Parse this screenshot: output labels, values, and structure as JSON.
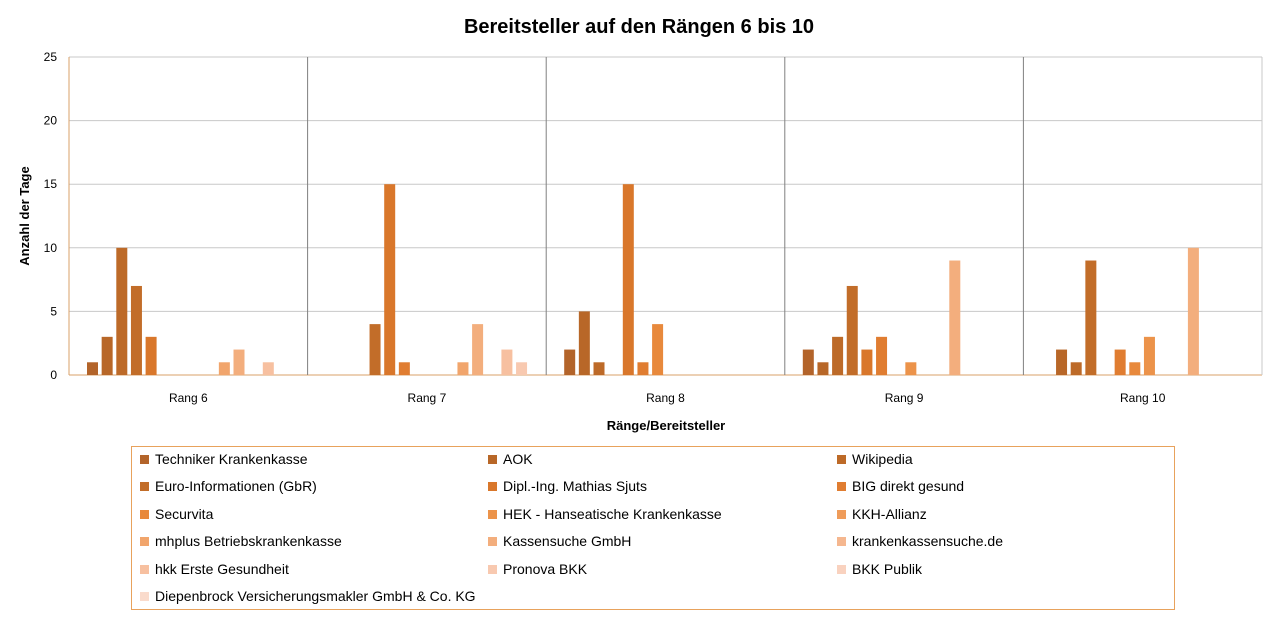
{
  "chart_data": {
    "type": "bar",
    "title": "Bereitsteller auf den Rängen 6 bis 10",
    "xlabel": "Ränge/Bereitsteller",
    "ylabel": "Anzahl der Tage",
    "ylim": [
      0,
      25
    ],
    "yticks": [
      "0",
      "5",
      "10",
      "15",
      "20",
      "25"
    ],
    "grid": true,
    "legend_position": "bottom",
    "categories": [
      "Rang 6",
      "Rang 7",
      "Rang 8",
      "Rang 9",
      "Rang 10"
    ],
    "series": [
      {
        "name": "Techniker Krankenkasse",
        "color": "#b3642a",
        "values": [
          1,
          0,
          2,
          2,
          0
        ]
      },
      {
        "name": "AOK",
        "color": "#b86728",
        "values": [
          3,
          0,
          5,
          1,
          2
        ]
      },
      {
        "name": "Wikipedia",
        "color": "#bd6a28",
        "values": [
          10,
          0,
          1,
          3,
          1
        ]
      },
      {
        "name": "Euro-Informationen (GbR)",
        "color": "#c26d29",
        "values": [
          7,
          4,
          0,
          7,
          9
        ]
      },
      {
        "name": "Dipl.-Ing. Mathias Sjuts",
        "color": "#d9772b",
        "values": [
          3,
          15,
          15,
          2,
          0
        ]
      },
      {
        "name": "BIG direkt gesund",
        "color": "#e07d31",
        "values": [
          0,
          1,
          1,
          3,
          2
        ]
      },
      {
        "name": "Securvita",
        "color": "#e8893c",
        "values": [
          0,
          0,
          4,
          0,
          1
        ]
      },
      {
        "name": "HEK - Hanseatische Krankenkasse",
        "color": "#ec934a",
        "values": [
          0,
          0,
          0,
          1,
          3
        ]
      },
      {
        "name": "KKH-Allianz",
        "color": "#ef9c5a",
        "values": [
          0,
          0,
          0,
          0,
          0
        ]
      },
      {
        "name": "mhplus Betriebskrankenkasse",
        "color": "#f1a56c",
        "values": [
          1,
          1,
          0,
          0,
          0
        ]
      },
      {
        "name": "Kassensuche GmbH",
        "color": "#f3ae7d",
        "values": [
          2,
          4,
          0,
          9,
          10
        ]
      },
      {
        "name": "krankenkassensuche.de",
        "color": "#f5b78f",
        "values": [
          0,
          0,
          0,
          0,
          0
        ]
      },
      {
        "name": "hkk Erste Gesundheit",
        "color": "#f7c0a0",
        "values": [
          1,
          2,
          0,
          0,
          0
        ]
      },
      {
        "name": "Pronova BKK",
        "color": "#f8c9b0",
        "values": [
          0,
          1,
          0,
          0,
          0
        ]
      },
      {
        "name": "BKK Publik",
        "color": "#f9d2bf",
        "values": [
          0,
          0,
          0,
          0,
          0
        ]
      },
      {
        "name": "Diepenbrock Versicherungsmakler GmbH & Co. KG",
        "color": "#fadbcc",
        "values": [
          0,
          0,
          0,
          0,
          0
        ]
      }
    ]
  }
}
